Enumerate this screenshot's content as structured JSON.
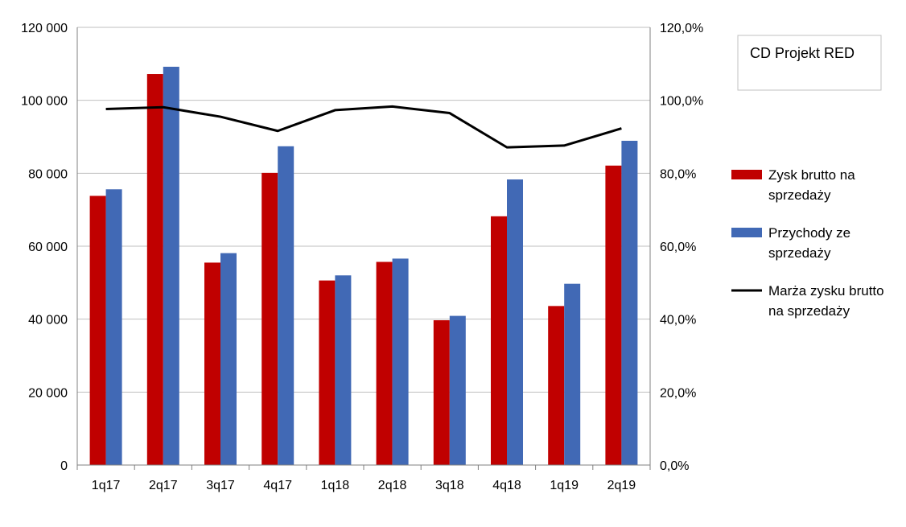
{
  "chart_data": {
    "type": "bar",
    "title": "CD Projekt RED",
    "categories": [
      "1q17",
      "2q17",
      "3q17",
      "4q17",
      "1q18",
      "2q18",
      "3q18",
      "4q18",
      "1q19",
      "2q19"
    ],
    "series": [
      {
        "name": "Zysk brutto na sprzedaży",
        "type": "bar",
        "axis": "left",
        "color": "#c00000",
        "values": [
          73800,
          107200,
          55500,
          80100,
          50600,
          55700,
          39700,
          68200,
          43600,
          82100
        ]
      },
      {
        "name": "Przychody ze sprzedaży",
        "type": "bar",
        "axis": "left",
        "color": "#4169b5",
        "values": [
          75600,
          109200,
          58100,
          87400,
          52000,
          56600,
          40900,
          78300,
          49700,
          88900
        ]
      },
      {
        "name": "Marża zysku brutto na sprzedaży",
        "type": "line",
        "axis": "right",
        "color": "#000000",
        "values": [
          97.6,
          98.1,
          95.5,
          91.6,
          97.3,
          98.3,
          96.5,
          87.1,
          87.6,
          92.3
        ]
      }
    ],
    "y_left": {
      "ylim": [
        0,
        120000
      ],
      "ticks": [
        0,
        20000,
        40000,
        60000,
        80000,
        100000,
        120000
      ],
      "tick_labels": [
        "0",
        "20 000",
        "40 000",
        "60 000",
        "80 000",
        "100 000",
        "120 000"
      ]
    },
    "y_right": {
      "ylim": [
        0,
        120
      ],
      "ticks": [
        0,
        20,
        40,
        60,
        80,
        100,
        120
      ],
      "tick_labels": [
        "0,0%",
        "20,0%",
        "40,0%",
        "60,0%",
        "80,0%",
        "100,0%",
        "120,0%"
      ]
    },
    "grid": true,
    "legend": {
      "position": "right",
      "entries": [
        [
          "Zysk brutto na",
          "sprzedaży"
        ],
        [
          "Przychody ze",
          "sprzedaży"
        ],
        [
          "Marża zysku brutto",
          "na sprzedaży"
        ]
      ]
    }
  }
}
